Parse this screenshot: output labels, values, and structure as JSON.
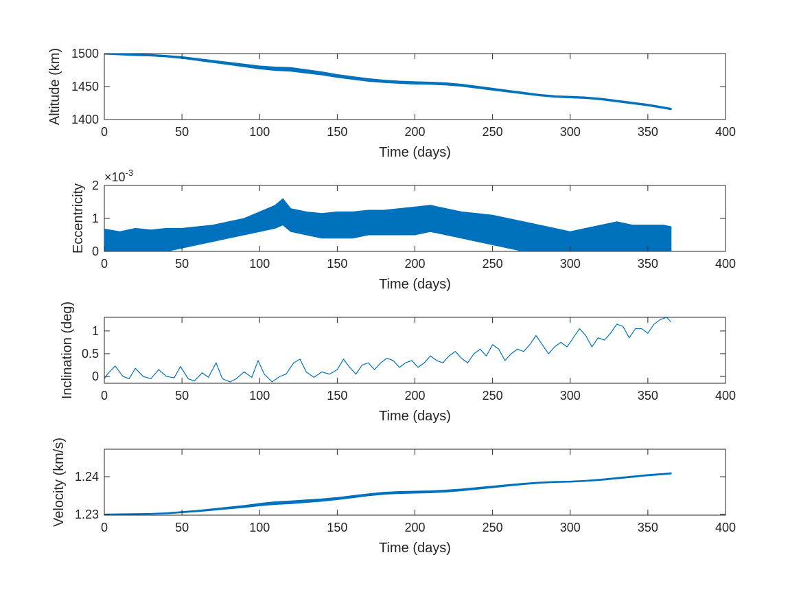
{
  "chart_data": [
    {
      "type": "line",
      "title": "",
      "xlabel": "Time (days)",
      "ylabel": "Altitude (km)",
      "xlim": [
        0,
        400
      ],
      "ylim": [
        1400,
        1500
      ],
      "xticks": [
        "0",
        "50",
        "100",
        "150",
        "200",
        "250",
        "300",
        "350",
        "400"
      ],
      "yticks": [
        "1400",
        "1450",
        "1500"
      ],
      "y_exponent": "",
      "color": "#0072BD",
      "grid": false,
      "series": [
        {
          "x": [
            0,
            10,
            20,
            30,
            40,
            50,
            60,
            70,
            80,
            90,
            100,
            110,
            120,
            130,
            140,
            150,
            160,
            170,
            180,
            190,
            200,
            210,
            220,
            230,
            240,
            250,
            260,
            270,
            280,
            290,
            300,
            310,
            320,
            330,
            340,
            350,
            360,
            365
          ],
          "values": [
            1500,
            1499,
            1498,
            1497.5,
            1496,
            1494,
            1491,
            1488,
            1485,
            1482,
            1479,
            1477,
            1476,
            1473,
            1470,
            1466,
            1463,
            1460,
            1458,
            1456.5,
            1455.5,
            1455,
            1454,
            1452,
            1449,
            1446,
            1443,
            1440,
            1437,
            1435,
            1434,
            1433,
            1431,
            1428,
            1425,
            1422,
            1418,
            1416
          ],
          "band": [
            0.8,
            0.8,
            0.9,
            1,
            1,
            1.2,
            1.3,
            1.4,
            1.6,
            1.8,
            2,
            2.4,
            2.6,
            2.4,
            2.2,
            2,
            1.9,
            1.8,
            1.7,
            1.6,
            1.6,
            1.5,
            1.5,
            1.4,
            1.4,
            1.3,
            1.2,
            1.1,
            1,
            1,
            1,
            1,
            1,
            1,
            1,
            1,
            1,
            1
          ]
        }
      ]
    },
    {
      "type": "line",
      "title": "",
      "xlabel": "Time (days)",
      "ylabel": "Eccentricity",
      "xlim": [
        0,
        400
      ],
      "ylim": [
        0,
        0.002
      ],
      "xticks": [
        "0",
        "50",
        "100",
        "150",
        "200",
        "250",
        "300",
        "350",
        "400"
      ],
      "yticks": [
        "0",
        "1",
        "2"
      ],
      "y_exponent": "-3",
      "color": "#0072BD",
      "grid": false,
      "series": [
        {
          "x": [
            0,
            10,
            20,
            30,
            40,
            50,
            60,
            70,
            80,
            90,
            100,
            110,
            115,
            120,
            130,
            140,
            150,
            160,
            170,
            180,
            190,
            200,
            210,
            220,
            230,
            240,
            250,
            260,
            270,
            280,
            290,
            300,
            310,
            320,
            330,
            340,
            350,
            360,
            365
          ],
          "upper": [
            0.00068,
            0.0006,
            0.0007,
            0.00065,
            0.0007,
            0.0007,
            0.00075,
            0.0008,
            0.0009,
            0.001,
            0.0012,
            0.0014,
            0.0016,
            0.0013,
            0.0012,
            0.00115,
            0.0012,
            0.0012,
            0.00125,
            0.00125,
            0.0013,
            0.00135,
            0.0014,
            0.0013,
            0.0012,
            0.00115,
            0.0011,
            0.001,
            0.0009,
            0.0008,
            0.0007,
            0.0006,
            0.0007,
            0.0008,
            0.0009,
            0.0008,
            0.0008,
            0.0008,
            0.00075
          ],
          "lower": [
            0,
            0,
            0,
            0,
            0,
            0.0001,
            0.0002,
            0.0003,
            0.0004,
            0.0005,
            0.0006,
            0.0007,
            0.0008,
            0.0006,
            0.0005,
            0.0004,
            0.0004,
            0.0004,
            0.0005,
            0.0005,
            0.0005,
            0.0005,
            0.0006,
            0.0005,
            0.0004,
            0.0003,
            0.0002,
            0.0001,
            0,
            0,
            0,
            0,
            0,
            0,
            0,
            0,
            0,
            0,
            0
          ]
        }
      ]
    },
    {
      "type": "line",
      "title": "",
      "xlabel": "Time (days)",
      "ylabel": "Inclination (deg)",
      "xlim": [
        0,
        400
      ],
      "ylim": [
        -0.15,
        1.3
      ],
      "xticks": [
        "0",
        "50",
        "100",
        "150",
        "200",
        "250",
        "300",
        "350",
        "400"
      ],
      "yticks": [
        "0",
        "0.5",
        "1"
      ],
      "y_exponent": "",
      "color": "#0072BD",
      "grid": false,
      "series": [
        {
          "x": [
            0,
            2,
            7,
            12,
            16,
            20,
            25,
            30,
            35,
            40,
            45,
            49,
            54,
            58,
            63,
            67,
            72,
            76,
            81,
            85,
            90,
            95,
            99,
            103,
            108,
            113,
            117,
            122,
            126,
            130,
            135,
            140,
            145,
            150,
            154,
            158,
            162,
            166,
            170,
            174,
            178,
            182,
            186,
            190,
            194,
            198,
            202,
            206,
            210,
            214,
            218,
            222,
            226,
            230,
            234,
            238,
            242,
            246,
            250,
            254,
            258,
            262,
            266,
            270,
            274,
            278,
            282,
            286,
            290,
            294,
            298,
            302,
            306,
            310,
            314,
            318,
            322,
            326,
            330,
            334,
            338,
            342,
            346,
            350,
            354,
            358,
            362,
            365
          ],
          "values": [
            -0.05,
            0.05,
            0.23,
            0.0,
            -0.05,
            0.18,
            0.0,
            -0.05,
            0.15,
            0.0,
            -0.03,
            0.22,
            -0.05,
            -0.1,
            0.08,
            -0.02,
            0.3,
            -0.05,
            -0.12,
            -0.05,
            0.1,
            -0.02,
            0.35,
            0.05,
            -0.12,
            0.0,
            0.05,
            0.3,
            0.38,
            0.1,
            -0.02,
            0.1,
            0.05,
            0.15,
            0.38,
            0.2,
            0.05,
            0.25,
            0.3,
            0.15,
            0.3,
            0.4,
            0.35,
            0.2,
            0.3,
            0.35,
            0.2,
            0.3,
            0.45,
            0.35,
            0.3,
            0.45,
            0.55,
            0.4,
            0.3,
            0.5,
            0.6,
            0.45,
            0.7,
            0.6,
            0.35,
            0.5,
            0.6,
            0.55,
            0.7,
            0.9,
            0.7,
            0.5,
            0.65,
            0.75,
            0.65,
            0.85,
            1.05,
            0.9,
            0.65,
            0.85,
            0.8,
            0.95,
            1.15,
            1.1,
            0.85,
            1.05,
            1.05,
            0.95,
            1.15,
            1.25,
            1.3,
            1.2
          ]
        }
      ]
    },
    {
      "type": "line",
      "title": "",
      "xlabel": "Time (days)",
      "ylabel": "Velocity (km/s)",
      "xlim": [
        0,
        400
      ],
      "ylim": [
        1.2298,
        1.2473
      ],
      "xticks": [
        "0",
        "50",
        "100",
        "150",
        "200",
        "250",
        "300",
        "350",
        "400"
      ],
      "yticks": [
        "1.23",
        "1.24"
      ],
      "y_exponent": "",
      "color": "#0072BD",
      "grid": false,
      "series": [
        {
          "x": [
            0,
            10,
            20,
            30,
            40,
            50,
            60,
            70,
            80,
            90,
            100,
            110,
            120,
            130,
            140,
            150,
            160,
            170,
            180,
            190,
            200,
            210,
            220,
            230,
            240,
            250,
            260,
            270,
            280,
            290,
            300,
            310,
            320,
            330,
            340,
            350,
            360,
            365
          ],
          "values": [
            1.23,
            1.23005,
            1.2301,
            1.23015,
            1.2303,
            1.2306,
            1.2309,
            1.2313,
            1.2317,
            1.2321,
            1.2326,
            1.233,
            1.2332,
            1.2335,
            1.2338,
            1.2342,
            1.2347,
            1.2352,
            1.2356,
            1.2358,
            1.2359,
            1.236,
            1.2362,
            1.2365,
            1.2369,
            1.2373,
            1.2377,
            1.2381,
            1.2384,
            1.2386,
            1.2387,
            1.2389,
            1.2392,
            1.2396,
            1.24,
            1.2404,
            1.2407,
            1.2409
          ],
          "band": [
            5e-05,
            6e-05,
            7e-05,
            8e-05,
            0.0001,
            0.00012,
            0.00014,
            0.00017,
            0.0002,
            0.00024,
            0.00028,
            0.00032,
            0.00033,
            0.0003,
            0.00028,
            0.00026,
            0.00025,
            0.00024,
            0.00024,
            0.00024,
            0.00023,
            0.00022,
            0.00022,
            0.0002,
            0.00019,
            0.00018,
            0.00016,
            0.00014,
            0.00012,
            0.0001,
            0.0001,
            0.00011,
            0.00012,
            0.00013,
            0.00013,
            0.00013,
            0.00012,
            0.00012
          ]
        }
      ]
    }
  ]
}
